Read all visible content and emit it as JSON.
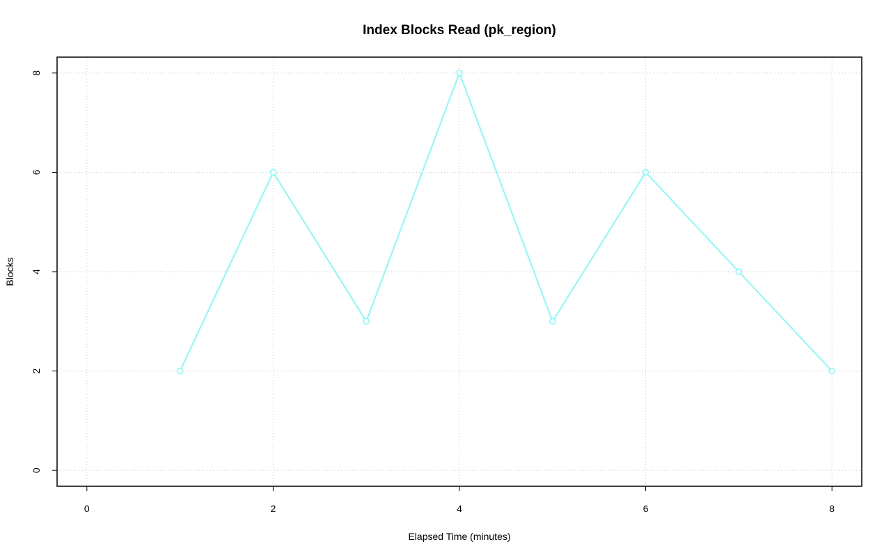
{
  "chart_data": {
    "type": "line",
    "title": "Index Blocks Read (pk_region)",
    "x_label": "Elapsed Time (minutes)",
    "y_label": "Blocks",
    "x": [
      1,
      2,
      3,
      4,
      5,
      6,
      7,
      8
    ],
    "values": [
      2,
      6,
      3,
      8,
      3,
      6,
      4,
      2
    ],
    "color": "#66ffff",
    "xlim": [
      -0.32,
      8.32
    ],
    "ylim": [
      -0.32,
      8.32
    ],
    "xticks": [
      0,
      2,
      4,
      6,
      8
    ],
    "yticks": [
      0,
      2,
      4,
      6,
      8
    ],
    "grid": true
  }
}
